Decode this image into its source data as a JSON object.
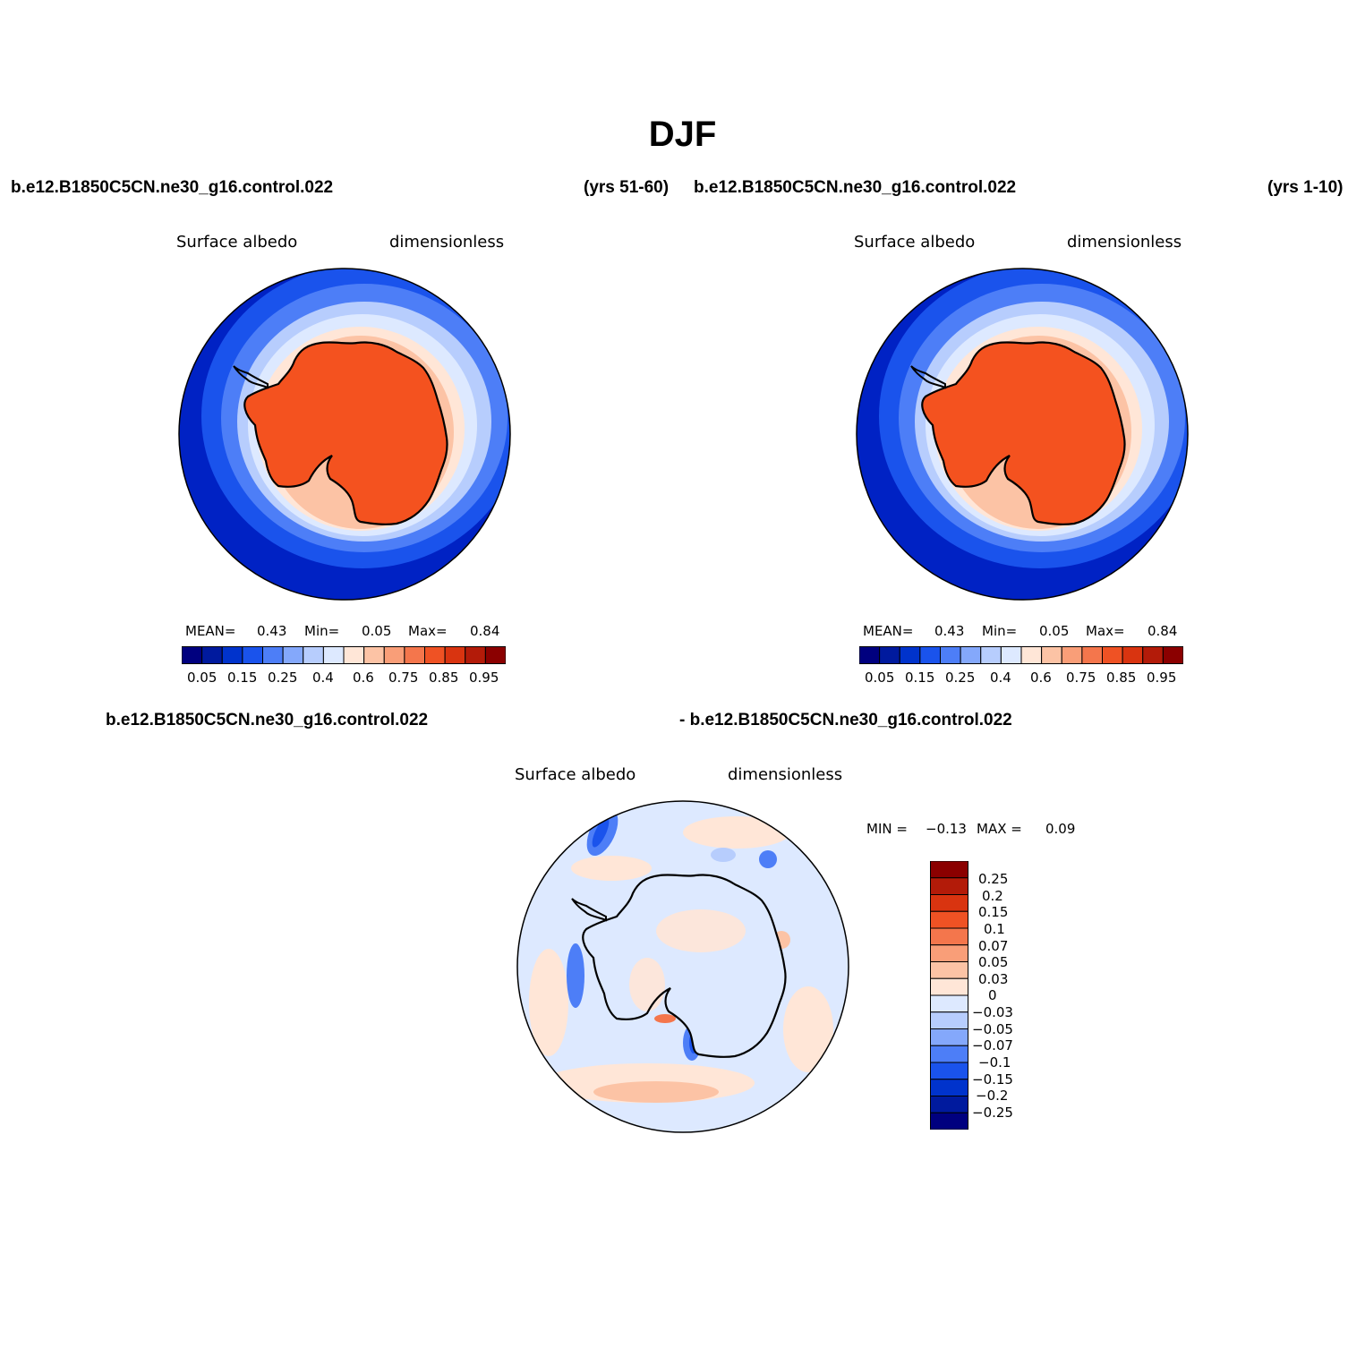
{
  "page": {
    "title": "DJF"
  },
  "panels": [
    {
      "case_name": "b.e12.B1850C5CN.ne30_g16.control.022",
      "years": "(yrs 51-60)",
      "variable": "Surface albedo",
      "units": "dimensionless",
      "stats": {
        "mean_label": "MEAN=",
        "mean": "0.43",
        "min_label": "Min=",
        "min": "0.05",
        "max_label": "Max=",
        "max": "0.84"
      }
    },
    {
      "case_name": "b.e12.B1850C5CN.ne30_g16.control.022",
      "years": "(yrs 1-10)",
      "variable": "Surface albedo",
      "units": "dimensionless",
      "stats": {
        "mean_label": "MEAN=",
        "mean": "0.43",
        "min_label": "Min=",
        "min": "0.05",
        "max_label": "Max=",
        "max": "0.84"
      }
    },
    {
      "case_name_a": "b.e12.B1850C5CN.ne30_g16.control.022",
      "case_name_b": "- b.e12.B1850C5CN.ne30_g16.control.022",
      "variable": "Surface albedo",
      "units": "dimensionless",
      "stats": {
        "min_label": "MIN =",
        "min": "−0.13",
        "max_label": "MAX =",
        "max": "0.09"
      }
    }
  ],
  "colorbar_abs": {
    "labels": [
      "0.05",
      "0.15",
      "0.25",
      "0.4",
      "0.6",
      "0.75",
      "0.85",
      "0.95"
    ],
    "colors": [
      "#00007f",
      "#001a9e",
      "#0033cc",
      "#1a53ec",
      "#4d7ef7",
      "#84a8fb",
      "#b7cdfd",
      "#dde9ff",
      "#ffe6d7",
      "#fcc3a5",
      "#f99e78",
      "#f4764c",
      "#ef5224",
      "#d93410",
      "#b31b09",
      "#8b0000"
    ]
  },
  "colorbar_diff": {
    "labels": [
      "0.25",
      "0.2",
      "0.15",
      "0.1",
      "0.07",
      "0.05",
      "0.03",
      "0",
      "−0.03",
      "−0.05",
      "−0.07",
      "−0.1",
      "−0.15",
      "−0.2",
      "−0.25"
    ],
    "colors": [
      "#8b0000",
      "#b31b09",
      "#d93410",
      "#ef5224",
      "#f4764c",
      "#f99e78",
      "#fcc3a5",
      "#ffe6d7",
      "#dde9ff",
      "#b7cdfd",
      "#84a8fb",
      "#4d7ef7",
      "#1a53ec",
      "#0033cc",
      "#001a9e",
      "#00007f"
    ]
  },
  "map_colors": {
    "ocean_deep": "#0022c4",
    "ring2": "#1a53ec",
    "ring3": "#4d7ef7",
    "ring4": "#b7cdfd",
    "ring5": "#dde9ff",
    "ring6": "#ffe6d7",
    "ring7": "#fcc3a5",
    "ice": "#f4521f",
    "diff_base": "#dde9ff",
    "diff_pos": "#ffe6d7",
    "diff_pos2": "#fcc3a5",
    "diff_neg": "#b7cdfd",
    "diff_neg2": "#4d7ef7",
    "diff_neg3": "#1a53ec",
    "diff_hot": "#f4764c"
  }
}
